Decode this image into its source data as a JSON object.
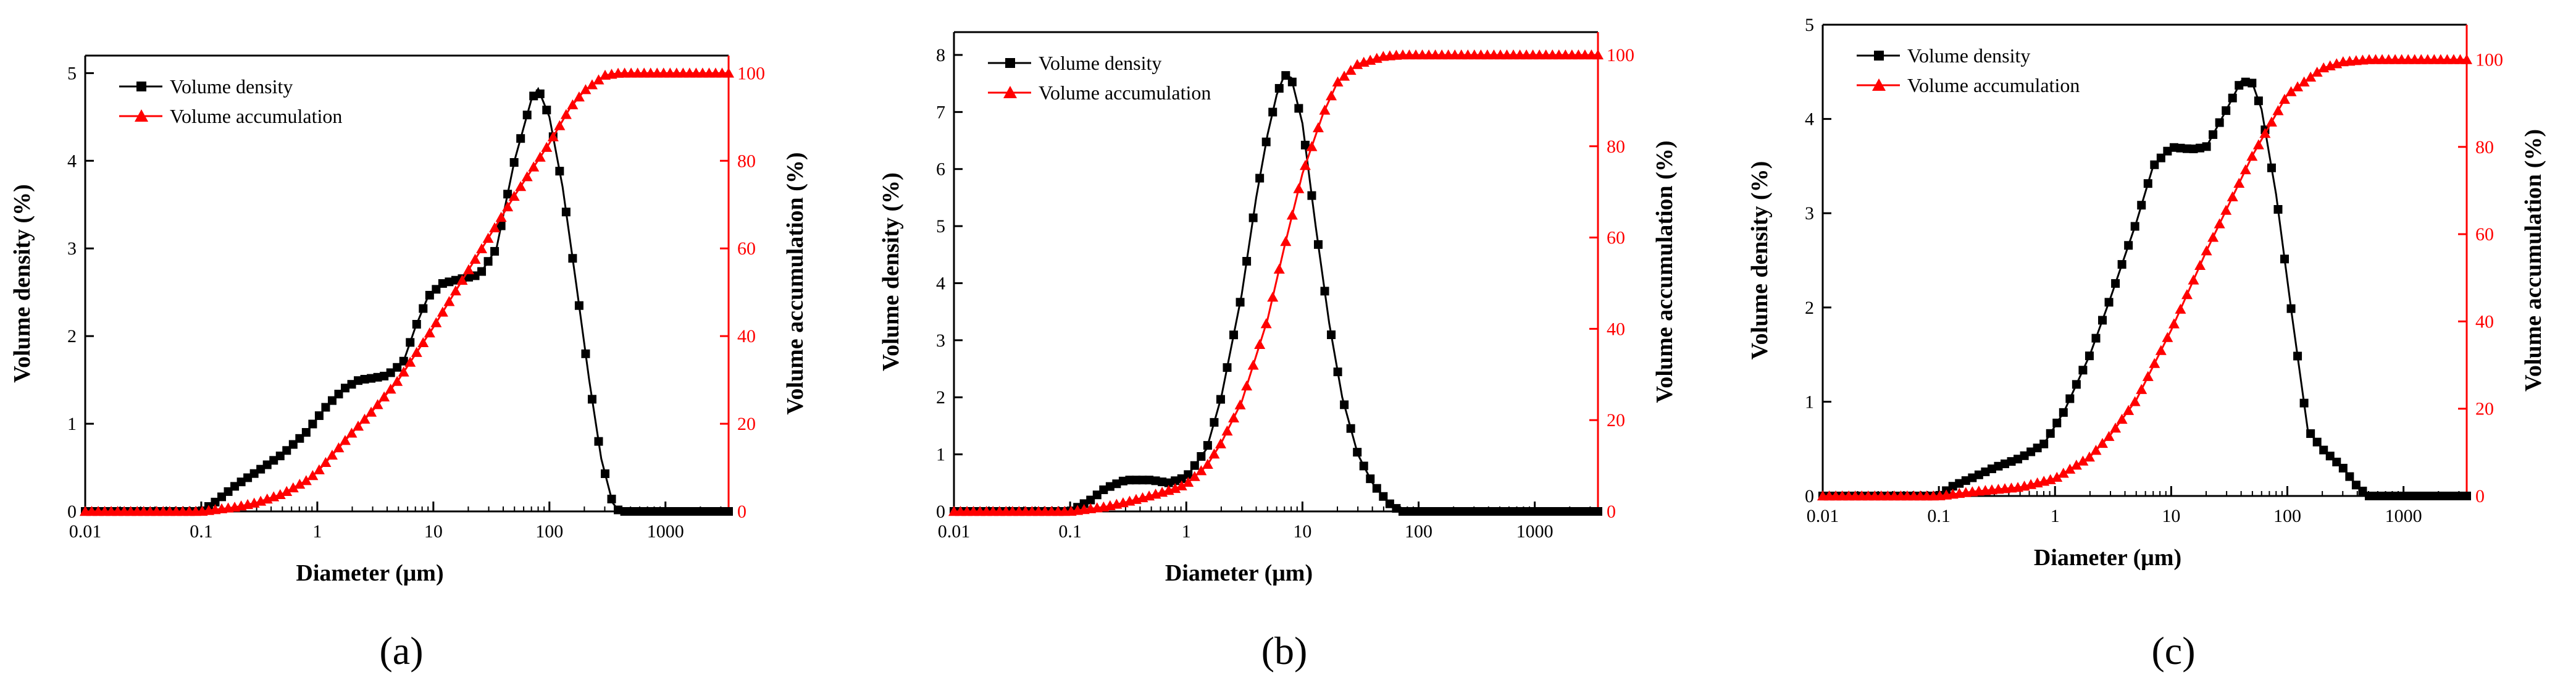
{
  "colors": {
    "density": "#000000",
    "accumulation": "#ff0000",
    "axis": "#000000"
  },
  "common": {
    "xlabel": "Diameter (μm)",
    "ylabel_left": "Volume density (%)",
    "ylabel_right": "Volume accumulation (%)",
    "legend_density": "Volume density",
    "legend_accumulation": "Volume accumulation",
    "x_ticks": [
      "0.01",
      "0.1",
      "1",
      "10",
      "100",
      "1000"
    ]
  },
  "chart_data": [
    {
      "type": "line",
      "panel_label": "(a)",
      "xscale": "log",
      "xlim": [
        0.01,
        3500
      ],
      "ylim": [
        0,
        5.2
      ],
      "y2lim": [
        0,
        104
      ],
      "yticks": [
        "0",
        "1",
        "2",
        "3",
        "4",
        "5"
      ],
      "y2ticks": [
        "0",
        "20",
        "40",
        "60",
        "80",
        "100"
      ],
      "legend_position": "top-left",
      "series": [
        {
          "name": "Volume density",
          "axis": "left",
          "marker": "square",
          "points": [
            [
              0.01,
              0
            ],
            [
              0.1,
              0
            ],
            [
              0.13,
              0.1
            ],
            [
              0.2,
              0.3
            ],
            [
              0.3,
              0.45
            ],
            [
              0.5,
              0.65
            ],
            [
              0.8,
              0.9
            ],
            [
              1.2,
              1.2
            ],
            [
              1.7,
              1.4
            ],
            [
              2.3,
              1.5
            ],
            [
              3,
              1.52
            ],
            [
              4,
              1.55
            ],
            [
              5.5,
              1.7
            ],
            [
              7,
              2.1
            ],
            [
              9,
              2.45
            ],
            [
              12,
              2.6
            ],
            [
              17,
              2.65
            ],
            [
              25,
              2.7
            ],
            [
              35,
              3.0
            ],
            [
              50,
              4.0
            ],
            [
              70,
              4.7
            ],
            [
              80,
              4.82
            ],
            [
              100,
              4.5
            ],
            [
              130,
              3.7
            ],
            [
              170,
              2.6
            ],
            [
              220,
              1.5
            ],
            [
              280,
              0.6
            ],
            [
              350,
              0.1
            ],
            [
              400,
              0
            ],
            [
              1000,
              0
            ],
            [
              3500,
              0
            ]
          ]
        },
        {
          "name": "Volume accumulation",
          "axis": "right",
          "marker": "triangle",
          "points": [
            [
              0.01,
              0
            ],
            [
              0.1,
              0
            ],
            [
              0.2,
              1
            ],
            [
              0.3,
              2
            ],
            [
              0.5,
              4
            ],
            [
              0.8,
              7
            ],
            [
              1,
              9
            ],
            [
              2,
              18
            ],
            [
              3,
              23
            ],
            [
              5,
              30
            ],
            [
              10,
              42
            ],
            [
              20,
              55
            ],
            [
              50,
              72
            ],
            [
              100,
              84
            ],
            [
              150,
              92
            ],
            [
              200,
              96
            ],
            [
              300,
              99.5
            ],
            [
              400,
              100
            ],
            [
              1000,
              100
            ],
            [
              3500,
              100
            ]
          ]
        }
      ]
    },
    {
      "type": "line",
      "panel_label": "(b)",
      "xscale": "log",
      "xlim": [
        0.01,
        3500
      ],
      "ylim": [
        0,
        8.4
      ],
      "y2lim": [
        0,
        105
      ],
      "yticks": [
        "0",
        "1",
        "2",
        "3",
        "4",
        "5",
        "6",
        "7",
        "8"
      ],
      "y2ticks": [
        "0",
        "20",
        "40",
        "60",
        "80",
        "100"
      ],
      "legend_position": "top-left",
      "series": [
        {
          "name": "Volume density",
          "axis": "left",
          "marker": "square",
          "points": [
            [
              0.01,
              0
            ],
            [
              0.1,
              0
            ],
            [
              0.15,
              0.2
            ],
            [
              0.2,
              0.4
            ],
            [
              0.3,
              0.55
            ],
            [
              0.5,
              0.55
            ],
            [
              0.7,
              0.5
            ],
            [
              1,
              0.6
            ],
            [
              1.5,
              1.1
            ],
            [
              2,
              2
            ],
            [
              3,
              3.8
            ],
            [
              4,
              5.5
            ],
            [
              5,
              6.6
            ],
            [
              6,
              7.3
            ],
            [
              7,
              7.65
            ],
            [
              8,
              7.6
            ],
            [
              10,
              6.8
            ],
            [
              13,
              5
            ],
            [
              17,
              3.3
            ],
            [
              22,
              2
            ],
            [
              30,
              1
            ],
            [
              40,
              0.5
            ],
            [
              55,
              0.15
            ],
            [
              70,
              0
            ],
            [
              100,
              0
            ],
            [
              3500,
              0
            ]
          ]
        },
        {
          "name": "Volume accumulation",
          "axis": "right",
          "marker": "triangle",
          "points": [
            [
              0.01,
              0
            ],
            [
              0.1,
              0
            ],
            [
              0.2,
              1
            ],
            [
              0.3,
              2
            ],
            [
              0.5,
              3.5
            ],
            [
              0.8,
              5
            ],
            [
              1,
              6
            ],
            [
              1.5,
              10
            ],
            [
              2,
              15
            ],
            [
              3,
              24
            ],
            [
              5,
              42
            ],
            [
              7,
              58
            ],
            [
              10,
              74
            ],
            [
              15,
              87
            ],
            [
              20,
              94
            ],
            [
              30,
              98
            ],
            [
              50,
              99.7
            ],
            [
              70,
              100
            ],
            [
              3500,
              100
            ]
          ]
        }
      ]
    },
    {
      "type": "line",
      "panel_label": "(c)",
      "xscale": "log",
      "xlim": [
        0.01,
        3500
      ],
      "ylim": [
        0,
        5
      ],
      "y2lim": [
        0,
        108
      ],
      "yticks": [
        "0",
        "1",
        "2",
        "3",
        "4",
        "5"
      ],
      "y2ticks": [
        "0",
        "20",
        "40",
        "60",
        "80",
        "100"
      ],
      "legend_position": "top-left",
      "series": [
        {
          "name": "Volume density",
          "axis": "left",
          "marker": "square",
          "points": [
            [
              0.01,
              0
            ],
            [
              0.1,
              0
            ],
            [
              0.13,
              0.1
            ],
            [
              0.2,
              0.2
            ],
            [
              0.3,
              0.3
            ],
            [
              0.5,
              0.4
            ],
            [
              0.8,
              0.55
            ],
            [
              1.2,
              0.9
            ],
            [
              2,
              1.5
            ],
            [
              3,
              2.1
            ],
            [
              5,
              2.9
            ],
            [
              7,
              3.5
            ],
            [
              10,
              3.7
            ],
            [
              15,
              3.68
            ],
            [
              20,
              3.7
            ],
            [
              30,
              4.1
            ],
            [
              40,
              4.4
            ],
            [
              50,
              4.38
            ],
            [
              60,
              4.1
            ],
            [
              80,
              3.2
            ],
            [
              110,
              1.9
            ],
            [
              150,
              0.7
            ],
            [
              200,
              0.5
            ],
            [
              300,
              0.3
            ],
            [
              400,
              0.1
            ],
            [
              500,
              0
            ],
            [
              1000,
              0
            ],
            [
              3500,
              0
            ]
          ]
        },
        {
          "name": "Volume accumulation",
          "axis": "right",
          "marker": "triangle",
          "points": [
            [
              0.01,
              0
            ],
            [
              0.1,
              0
            ],
            [
              0.2,
              1
            ],
            [
              0.5,
              2
            ],
            [
              1,
              4
            ],
            [
              2,
              9
            ],
            [
              3,
              14
            ],
            [
              5,
              22
            ],
            [
              10,
              38
            ],
            [
              20,
              56
            ],
            [
              50,
              78
            ],
            [
              100,
              92
            ],
            [
              200,
              98
            ],
            [
              300,
              99.5
            ],
            [
              500,
              100
            ],
            [
              3500,
              100
            ]
          ]
        }
      ]
    }
  ]
}
